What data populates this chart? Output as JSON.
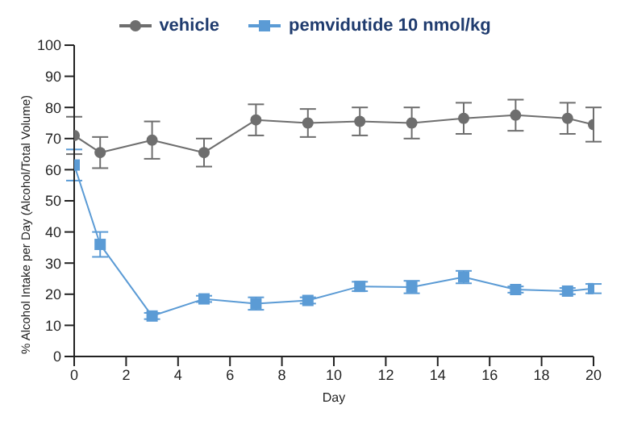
{
  "chart_data": {
    "type": "line",
    "xlabel": "Day",
    "ylabel": "% Alcohol Intake per Day (Alcohol/Total Volume)",
    "x": [
      0,
      1,
      3,
      5,
      7,
      9,
      11,
      13,
      15,
      17,
      19,
      20
    ],
    "xlim": [
      0,
      20
    ],
    "xticks": [
      0,
      2,
      4,
      6,
      8,
      10,
      12,
      14,
      16,
      18,
      20
    ],
    "ylim": [
      0,
      100
    ],
    "yticks": [
      0,
      10,
      20,
      30,
      40,
      50,
      60,
      70,
      80,
      90,
      100
    ],
    "grid": false,
    "legend": "top",
    "series": [
      {
        "name": "vehicle",
        "color": "#6e6e6e",
        "marker": "circle",
        "values": [
          71,
          65.5,
          69.5,
          65.5,
          76,
          75,
          75.5,
          75,
          76.5,
          77.5,
          76.5,
          74.5
        ],
        "errors": [
          6,
          5,
          6,
          4.5,
          5,
          4.5,
          4.5,
          5,
          5,
          5,
          5,
          5.5
        ]
      },
      {
        "name": "pemvidutide 10 nmol/kg",
        "color": "#5b9bd5",
        "marker": "square",
        "values": [
          61.5,
          36,
          13,
          18.5,
          17,
          18,
          22.5,
          22.3,
          25.5,
          21.5,
          21,
          21.8
        ],
        "errors": [
          5,
          4,
          1,
          1,
          2,
          1,
          1.5,
          2,
          2,
          1,
          1,
          1.5
        ]
      }
    ]
  }
}
